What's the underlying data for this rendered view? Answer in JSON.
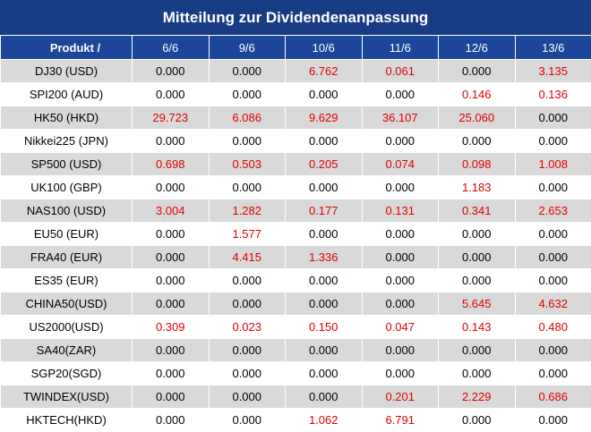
{
  "title": "Mitteilung zur Dividendenanpassung",
  "table": {
    "product_header": "Produkt /",
    "dates": [
      "6/6",
      "9/6",
      "10/6",
      "11/6",
      "12/6",
      "13/6"
    ],
    "rows": [
      {
        "product": "DJ30 (USD)",
        "values": [
          "0.000",
          "0.000",
          "6.762",
          "0.061",
          "0.000",
          "3.135"
        ]
      },
      {
        "product": "SPI200 (AUD)",
        "values": [
          "0.000",
          "0.000",
          "0.000",
          "0.000",
          "0.146",
          "0.136"
        ]
      },
      {
        "product": "HK50 (HKD)",
        "values": [
          "29.723",
          "6.086",
          "9.629",
          "36.107",
          "25.060",
          "0.000"
        ]
      },
      {
        "product": "Nikkei225 (JPN)",
        "values": [
          "0.000",
          "0.000",
          "0.000",
          "0.000",
          "0.000",
          "0.000"
        ]
      },
      {
        "product": "SP500 (USD)",
        "values": [
          "0.698",
          "0.503",
          "0.205",
          "0.074",
          "0.098",
          "1.008"
        ]
      },
      {
        "product": "UK100 (GBP)",
        "values": [
          "0.000",
          "0.000",
          "0.000",
          "0.000",
          "1.183",
          "0.000"
        ]
      },
      {
        "product": "NAS100 (USD)",
        "values": [
          "3.004",
          "1.282",
          "0.177",
          "0.131",
          "0.341",
          "2.653"
        ]
      },
      {
        "product": "EU50 (EUR)",
        "values": [
          "0.000",
          "1.577",
          "0.000",
          "0.000",
          "0.000",
          "0.000"
        ]
      },
      {
        "product": "FRA40 (EUR)",
        "values": [
          "0.000",
          "4.415",
          "1.336",
          "0.000",
          "0.000",
          "0.000"
        ]
      },
      {
        "product": "ES35 (EUR)",
        "values": [
          "0.000",
          "0.000",
          "0.000",
          "0.000",
          "0.000",
          "0.000"
        ]
      },
      {
        "product": "CHINA50(USD)",
        "values": [
          "0.000",
          "0.000",
          "0.000",
          "0.000",
          "5.645",
          "4.632"
        ]
      },
      {
        "product": "US2000(USD)",
        "values": [
          "0.309",
          "0.023",
          "0.150",
          "0.047",
          "0.143",
          "0.480"
        ]
      },
      {
        "product": "SA40(ZAR)",
        "values": [
          "0.000",
          "0.000",
          "0.000",
          "0.000",
          "0.000",
          "0.000"
        ]
      },
      {
        "product": "SGP20(SGD)",
        "values": [
          "0.000",
          "0.000",
          "0.000",
          "0.000",
          "0.000",
          "0.000"
        ]
      },
      {
        "product": "TWINDEX(USD)",
        "values": [
          "0.000",
          "0.000",
          "0.000",
          "0.201",
          "2.229",
          "0.686"
        ]
      },
      {
        "product": "HKTECH(HKD)",
        "values": [
          "0.000",
          "0.000",
          "1.062",
          "6.791",
          "0.000",
          "0.000"
        ]
      }
    ]
  },
  "colors": {
    "title_background": "#173c84",
    "header_background": "#1c469a",
    "stripe_background": "#d9d9d9",
    "nonzero_value": "#e00000",
    "zero_value": "#000000"
  }
}
